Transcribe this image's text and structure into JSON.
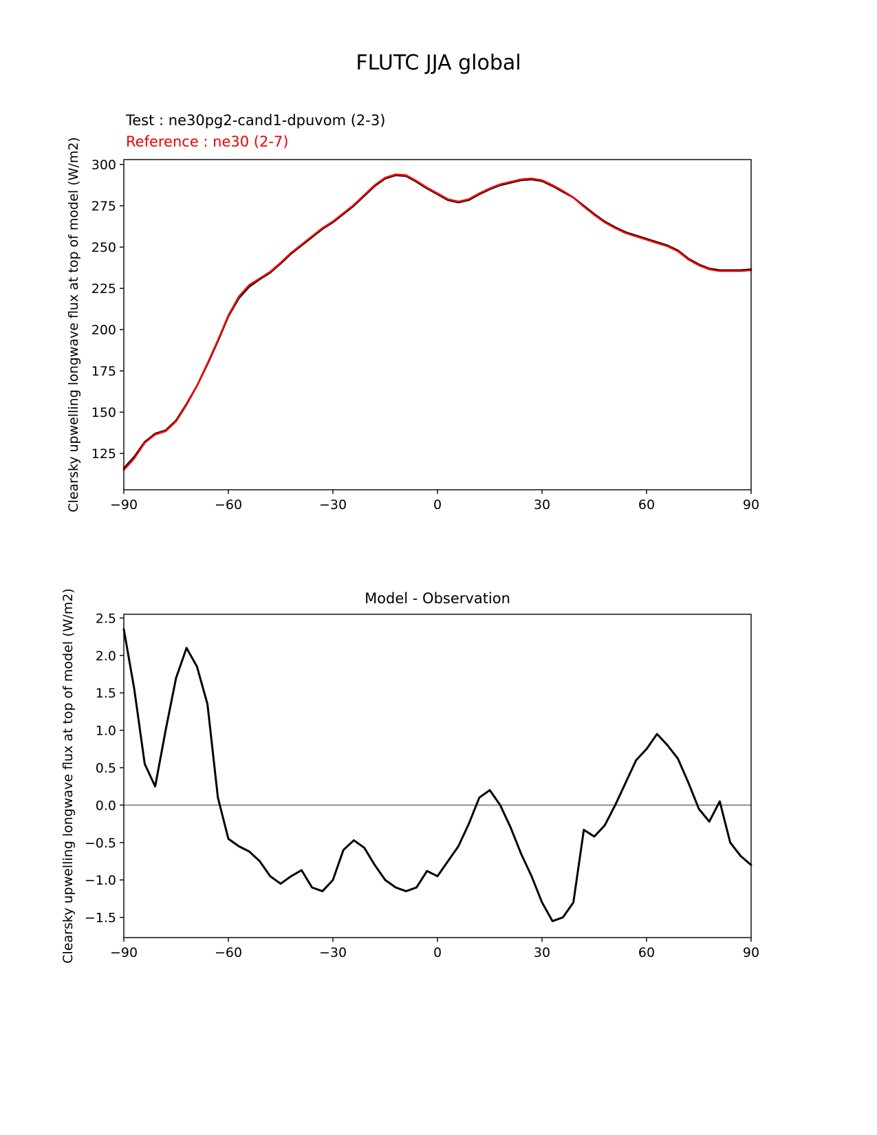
{
  "page": {
    "title": "FLUTC JJA global"
  },
  "top_chart": {
    "test_label": "Test : ne30pg2-cand1-dpuvom (2-3)",
    "reference_label": "Reference : ne30 (2-7)",
    "ylabel": "Clearsky upwelling longwave flux at top of model (W/m2)",
    "colors": {
      "test": "#000000",
      "reference": "#ee0000"
    }
  },
  "bottom_chart": {
    "title": "Model - Observation",
    "ylabel": "Clearsky upwelling longwave flux at top of model (W/m2)",
    "colors": {
      "line": "#000000",
      "zero_line": "#888888"
    }
  },
  "chart_data": [
    {
      "type": "line",
      "title": "FLUTC JJA global",
      "xlabel": "",
      "ylabel": "Clearsky upwelling longwave flux at top of model (W/m2)",
      "xlim": [
        -90,
        90
      ],
      "ylim": [
        103,
        303
      ],
      "xticks": [
        -90,
        -60,
        -30,
        0,
        30,
        60,
        90
      ],
      "xticklabels": [
        "−90",
        "−60",
        "−30",
        "0",
        "30",
        "60",
        "90"
      ],
      "yticks": [
        125,
        150,
        175,
        200,
        225,
        250,
        275,
        300
      ],
      "yticklabels": [
        "125",
        "150",
        "175",
        "200",
        "225",
        "250",
        "275",
        "300"
      ],
      "grid": false,
      "zero_line": false,
      "x": [
        -90,
        -87,
        -84,
        -81,
        -78,
        -75,
        -72,
        -69,
        -66,
        -63,
        -60,
        -57,
        -54,
        -51,
        -48,
        -45,
        -42,
        -39,
        -36,
        -33,
        -30,
        -27,
        -24,
        -21,
        -18,
        -15,
        -12,
        -9,
        -6,
        -3,
        0,
        3,
        6,
        9,
        12,
        15,
        18,
        21,
        24,
        27,
        30,
        33,
        36,
        39,
        42,
        45,
        48,
        51,
        54,
        57,
        60,
        63,
        66,
        69,
        72,
        75,
        78,
        81,
        84,
        87,
        90
      ],
      "series": [
        {
          "name": "Test : ne30pg2-cand1-dpuvom (2-3)",
          "color": "#000000",
          "width": 2.6,
          "values": [
            116,
            123,
            132,
            137,
            139,
            145,
            155,
            166,
            179,
            193,
            208,
            219,
            226,
            230.5,
            234.5,
            240,
            246,
            251,
            256,
            261,
            265,
            270,
            275,
            281,
            287,
            291.5,
            293.5,
            293,
            289.5,
            285.5,
            282,
            278.5,
            277,
            278.5,
            282,
            285,
            287.5,
            289,
            290.5,
            291,
            290,
            287,
            283.5,
            280,
            275,
            270,
            265.5,
            262,
            259,
            257,
            255,
            253,
            251,
            248,
            243,
            239.5,
            237,
            236,
            236,
            236,
            236.5
          ]
        },
        {
          "name": "Reference : ne30 (2-7)",
          "color": "#ee0000",
          "width": 2.6,
          "values": [
            115,
            122,
            131.5,
            136.5,
            138.5,
            144.5,
            154.5,
            166,
            179.5,
            193.5,
            208.5,
            220,
            227,
            231,
            235,
            240.5,
            246.5,
            251.5,
            256.5,
            261.5,
            265.5,
            270.5,
            275.5,
            281.5,
            287.5,
            292,
            294,
            293.5,
            290,
            286,
            282.5,
            279,
            277.5,
            279,
            282.5,
            285.5,
            288,
            289.5,
            291,
            291.5,
            290.5,
            287.5,
            284,
            280,
            274.5,
            269.5,
            265,
            261.5,
            258.5,
            256.5,
            254.5,
            252.5,
            250.5,
            247.5,
            242.5,
            239,
            236.5,
            235.5,
            235.5,
            235.5,
            236
          ]
        }
      ]
    },
    {
      "type": "line",
      "title": "Model - Observation",
      "xlabel": "",
      "ylabel": "Clearsky upwelling longwave flux at top of model (W/m2)",
      "xlim": [
        -90,
        90
      ],
      "ylim": [
        -1.77,
        2.55
      ],
      "xticks": [
        -90,
        -60,
        -30,
        0,
        30,
        60,
        90
      ],
      "xticklabels": [
        "−90",
        "−60",
        "−30",
        "0",
        "30",
        "60",
        "90"
      ],
      "yticks": [
        -1.5,
        -1.0,
        -0.5,
        0.0,
        0.5,
        1.0,
        1.5,
        2.0,
        2.5
      ],
      "yticklabels": [
        "−1.5",
        "−1.0",
        "−0.5",
        "0.0",
        "0.5",
        "1.0",
        "1.5",
        "2.0",
        "2.5"
      ],
      "grid": false,
      "zero_line": true,
      "zero_line_color": "#888888",
      "x": [
        -90,
        -87,
        -84,
        -81,
        -78,
        -75,
        -72,
        -69,
        -66,
        -63,
        -60,
        -57,
        -54,
        -51,
        -48,
        -45,
        -42,
        -39,
        -36,
        -33,
        -30,
        -27,
        -24,
        -21,
        -18,
        -15,
        -12,
        -9,
        -6,
        -3,
        0,
        3,
        6,
        9,
        12,
        15,
        18,
        21,
        24,
        27,
        30,
        33,
        36,
        39,
        42,
        45,
        48,
        51,
        54,
        57,
        60,
        63,
        66,
        69,
        72,
        75,
        78,
        81,
        84,
        87,
        90
      ],
      "series": [
        {
          "name": "Model - Observation",
          "color": "#000000",
          "width": 3,
          "values": [
            2.35,
            1.55,
            0.55,
            0.25,
            1.0,
            1.7,
            2.1,
            1.85,
            1.35,
            0.1,
            -0.45,
            -0.55,
            -0.62,
            -0.75,
            -0.95,
            -1.05,
            -0.95,
            -0.87,
            -1.1,
            -1.15,
            -1.0,
            -0.6,
            -0.47,
            -0.57,
            -0.8,
            -1.0,
            -1.1,
            -1.15,
            -1.1,
            -0.88,
            -0.95,
            -0.75,
            -0.55,
            -0.25,
            0.1,
            0.2,
            0.0,
            -0.3,
            -0.65,
            -0.95,
            -1.3,
            -1.55,
            -1.5,
            -1.3,
            -0.33,
            -0.42,
            -0.27,
            0.0,
            0.3,
            0.6,
            0.75,
            0.95,
            0.8,
            0.62,
            0.3,
            -0.05,
            -0.22,
            0.05,
            -0.5,
            -0.68,
            -0.8
          ]
        }
      ]
    }
  ]
}
